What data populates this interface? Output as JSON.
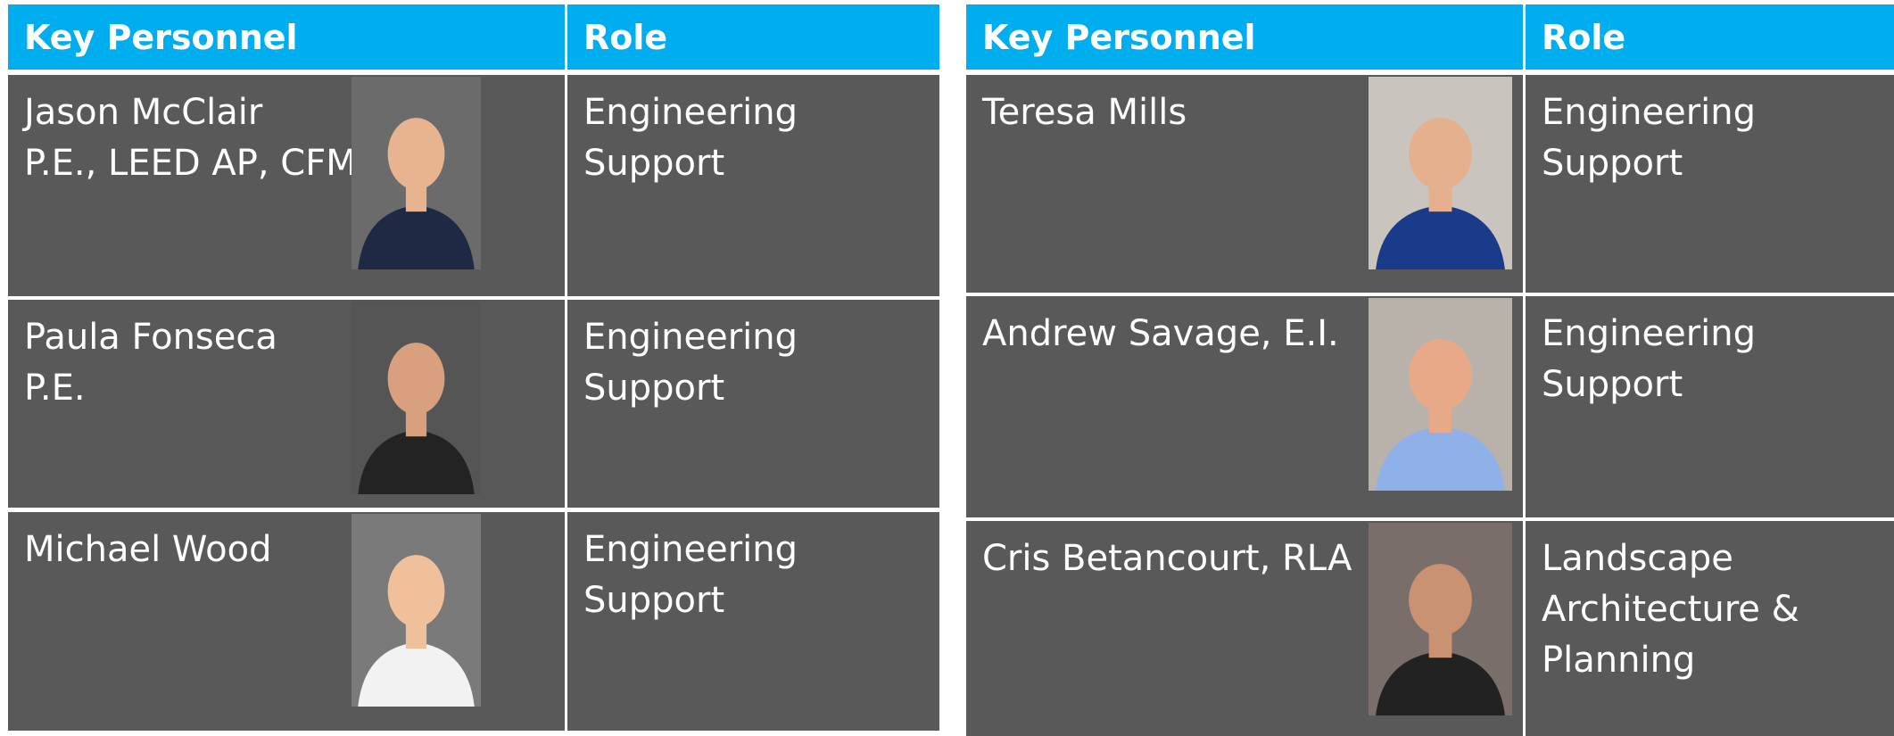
{
  "tables": [
    {
      "header": [
        "Key Personnel",
        "Role"
      ],
      "rows": [
        {
          "name": [
            "Jason McClair",
            "P.E., LEED AP, CFM"
          ],
          "role": [
            "Engineering",
            "Support"
          ]
        },
        {
          "name": [
            "Paula Fonseca",
            "P.E."
          ],
          "role": [
            "Engineering",
            "Support"
          ]
        },
        {
          "name": [
            "Michael Wood"
          ],
          "role": [
            "Engineering",
            "Support"
          ]
        }
      ]
    },
    {
      "header": [
        "Key Personnel",
        "Role"
      ],
      "rows": [
        {
          "name": [
            "Teresa Mills"
          ],
          "role": [
            "Engineering",
            "Support"
          ]
        },
        {
          "name": [
            "Andrew Savage, E.I."
          ],
          "role": [
            "Engineering",
            "Support"
          ]
        },
        {
          "name": [
            "Cris Betancourt, RLA"
          ],
          "role": [
            "Landscape",
            "Architecture &",
            "Planning"
          ]
        }
      ]
    }
  ]
}
